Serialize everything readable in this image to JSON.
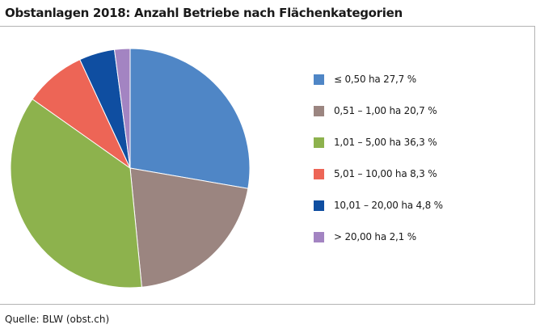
{
  "title": "Obstanlagen 2018: Anzahl Betriebe nach Flächenkategorien",
  "source": "Quelle: BLW (obst.ch)",
  "chart_data": {
    "type": "pie",
    "title": "Obstanlagen 2018: Anzahl Betriebe nach Flächenkategorien",
    "unit": "%",
    "categories": [
      "≤ 0,50 ha",
      "0,51 – 1,00 ha",
      "1,01 – 5,00 ha",
      "5,01 – 10,00 ha",
      "10,01 – 20,00 ha",
      "> 20,00 ha"
    ],
    "values": [
      27.7,
      20.7,
      36.3,
      8.3,
      4.8,
      2.1
    ],
    "legend_labels": [
      "≤ 0,50 ha 27,7 %",
      "0,51 – 1,00 ha 20,7 %",
      "1,01 – 5,00 ha 36,3 %",
      "5,01 – 10,00 ha 8,3 %",
      "10,01 – 20,00 ha 4,8 %",
      "> 20,00 ha 2,1 %"
    ],
    "colors": [
      "#4f86c6",
      "#9b8580",
      "#8db24d",
      "#ed6556",
      "#0f4ea1",
      "#a384c2"
    ],
    "start_angle_deg": 0,
    "direction": "clockwise",
    "legend_position": "right"
  }
}
